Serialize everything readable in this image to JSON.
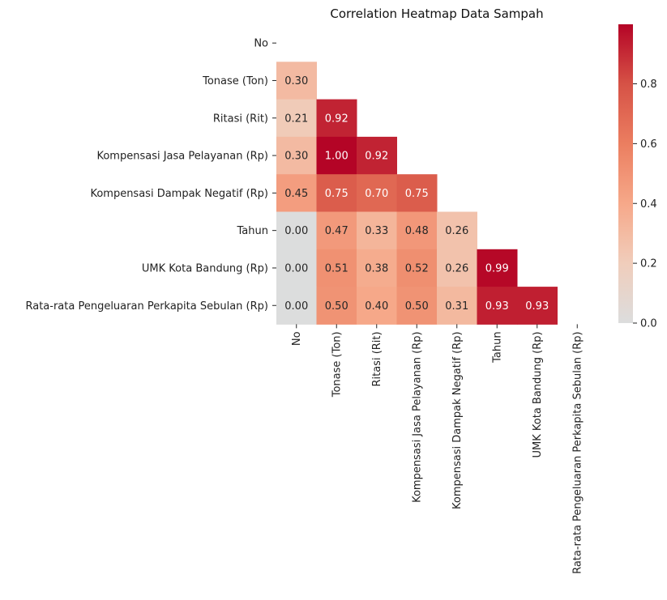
{
  "chart_data": {
    "type": "heatmap",
    "title": "Correlation Heatmap Data Sampah",
    "variables": [
      "No",
      "Tonase (Ton)",
      "Ritasi (Rit)",
      "Kompensasi Jasa Pelayanan (Rp)",
      "Kompensasi Dampak Negatif (Rp)",
      "Tahun",
      "UMK Kota Bandung (Rp)",
      "Rata-rata Pengeluaran Perkapita Sebulan (Rp)"
    ],
    "mask": "upper-triangle-including-diagonal",
    "values": [
      [
        null,
        null,
        null,
        null,
        null,
        null,
        null,
        null
      ],
      [
        0.3,
        null,
        null,
        null,
        null,
        null,
        null,
        null
      ],
      [
        0.21,
        0.92,
        null,
        null,
        null,
        null,
        null,
        null
      ],
      [
        0.3,
        1.0,
        0.92,
        null,
        null,
        null,
        null,
        null
      ],
      [
        0.45,
        0.75,
        0.7,
        0.75,
        null,
        null,
        null,
        null
      ],
      [
        0.0,
        0.47,
        0.33,
        0.48,
        0.26,
        null,
        null,
        null
      ],
      [
        0.0,
        0.51,
        0.38,
        0.52,
        0.26,
        0.99,
        null,
        null
      ],
      [
        0.0,
        0.5,
        0.4,
        0.5,
        0.31,
        0.93,
        0.93,
        null
      ]
    ],
    "value_format": "0.00",
    "colormap": "coolwarm (light grey at 0 to dark red at max)",
    "color_low": "#dcdcdc",
    "color_high": "#b40426",
    "colorbar": {
      "range": [
        0.0,
        1.0
      ],
      "ticks": [
        "0.0",
        "0.2",
        "0.4",
        "0.6",
        "0.8"
      ],
      "tick_values": [
        0.0,
        0.2,
        0.4,
        0.6,
        0.8
      ]
    }
  }
}
